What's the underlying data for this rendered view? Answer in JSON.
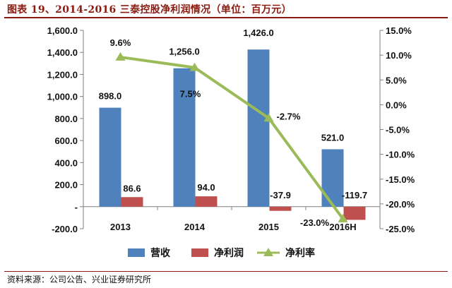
{
  "title": "图表 19、2014-2016 三泰控股净利润情况（单位：百万元）",
  "source": "资料来源：公司公告、兴业证券研究所",
  "chart_data": {
    "type": "bar",
    "categories": [
      "2013",
      "2014",
      "2015",
      "2016H"
    ],
    "series": [
      {
        "name": "营收",
        "kind": "bar",
        "axis": "left",
        "color": "#4f81bd",
        "values": [
          898.0,
          1256.0,
          1426.0,
          521.0
        ],
        "labels": [
          "898.0",
          "1,256.0",
          "1,426.0",
          "521.0"
        ]
      },
      {
        "name": "净利润",
        "kind": "bar",
        "axis": "left",
        "color": "#c0504d",
        "values": [
          86.6,
          94.0,
          -37.9,
          -119.7
        ],
        "labels": [
          "86.6",
          "94.0",
          "-37.9",
          "-119.7"
        ]
      },
      {
        "name": "净利率",
        "kind": "line",
        "axis": "right",
        "color": "#9bbb59",
        "values": [
          9.6,
          7.5,
          -2.7,
          -23.0
        ],
        "labels": [
          "9.6%",
          "7.5%",
          "-2.7%",
          "-23.0%"
        ]
      }
    ],
    "y_left": {
      "min": -200,
      "max": 1600,
      "step": 200,
      "tick_labels": [
        "-200.0",
        "-",
        "200.0",
        "400.0",
        "600.0",
        "800.0",
        "1,000.0",
        "1,200.0",
        "1,400.0",
        "1,600.0"
      ]
    },
    "y_right": {
      "min": -25,
      "max": 15,
      "step": 5,
      "tick_labels": [
        "-25.0%",
        "-20.0%",
        "-15.0%",
        "-10.0%",
        "-5.0%",
        "0.0%",
        "5.0%",
        "10.0%",
        "15.0%"
      ]
    },
    "legend": {
      "position": "bottom",
      "items": [
        {
          "label": "营收",
          "color": "#4f81bd",
          "kind": "bar"
        },
        {
          "label": "净利润",
          "color": "#c0504d",
          "kind": "bar"
        },
        {
          "label": "净利率",
          "color": "#9bbb59",
          "kind": "line"
        }
      ]
    },
    "grid": false
  }
}
